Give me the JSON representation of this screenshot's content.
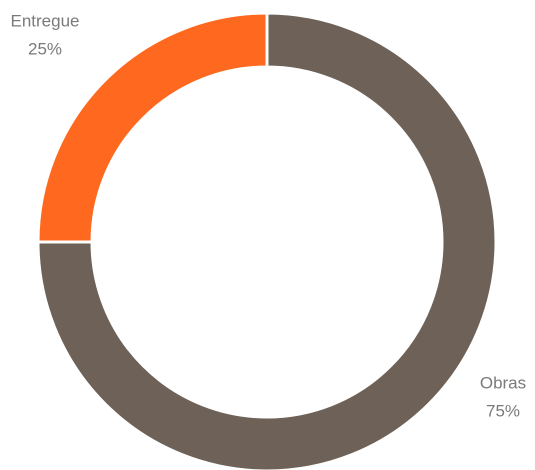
{
  "chart_data": {
    "type": "donut",
    "categories": [
      "Obras",
      "Entregue"
    ],
    "values": [
      75,
      25
    ],
    "value_labels": [
      "75%",
      "25%"
    ],
    "colors": [
      "#6e6157",
      "#ff691f"
    ]
  }
}
